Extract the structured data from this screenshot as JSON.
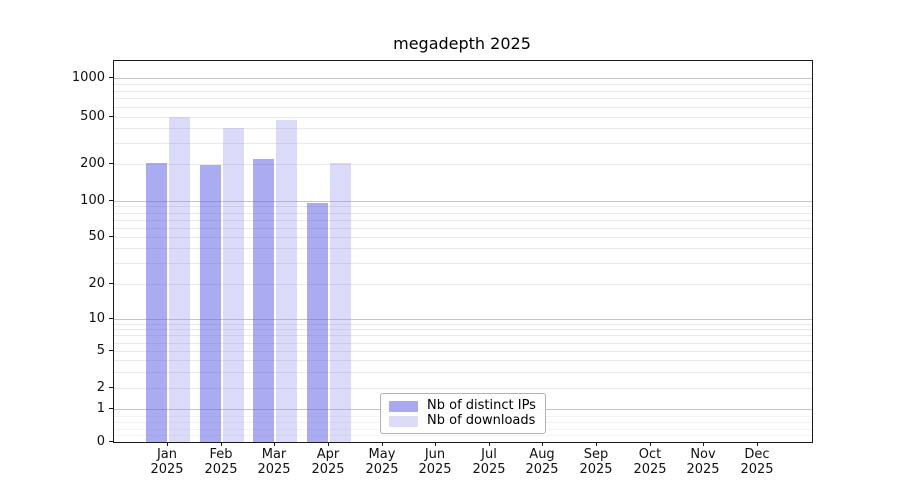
{
  "title": "megadepth 2025",
  "chart_data": {
    "type": "bar",
    "title": "megadepth 2025",
    "categories": [
      "Jan 2025",
      "Feb 2025",
      "Mar 2025",
      "Apr 2025",
      "May 2025",
      "Jun 2025",
      "Jul 2025",
      "Aug 2025",
      "Sep 2025",
      "Oct 2025",
      "Nov 2025",
      "Dec 2025"
    ],
    "series": [
      {
        "name": "Nb of distinct IPs",
        "swatch_color": "#a9a9f1",
        "fill": "rgba(102,102,232,0.55)",
        "values": [
          202,
          195,
          220,
          97,
          0,
          0,
          0,
          0,
          0,
          0,
          0,
          0
        ]
      },
      {
        "name": "Nb of downloads",
        "swatch_color": "#dcdcf8",
        "fill": "rgba(153,153,238,0.35)",
        "values": [
          500,
          405,
          470,
          205,
          0,
          0,
          0,
          0,
          0,
          0,
          0,
          0
        ]
      }
    ],
    "yscale": "symlog",
    "yticks": [
      0,
      1,
      2,
      5,
      10,
      20,
      50,
      100,
      200,
      500,
      1000
    ],
    "ylim": [
      0,
      1400
    ],
    "xlabel": "",
    "ylabel": "",
    "grid": "horizontal, major and minor",
    "legend_position": "lower center inside plot"
  },
  "legend": {
    "items": [
      {
        "label": "Nb of distinct IPs",
        "color": "#a9a9f1"
      },
      {
        "label": "Nb of downloads",
        "color": "#dcdcf8"
      }
    ]
  }
}
